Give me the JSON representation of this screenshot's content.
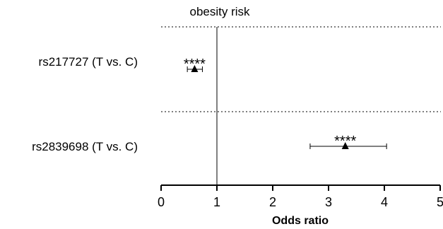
{
  "chart_data": {
    "type": "forest",
    "title": "obesity risk",
    "xlabel": "Odds ratio",
    "xlim": [
      0,
      5
    ],
    "x_ticks": [
      0,
      1,
      2,
      3,
      4,
      5
    ],
    "x_tick_labels": [
      "0",
      "1",
      "2",
      "3",
      "4",
      "5"
    ],
    "reference_line": 1,
    "rows": [
      {
        "label": "rs217727 (T vs. C)",
        "or": 0.6,
        "ci_low": 0.47,
        "ci_high": 0.74,
        "significance": "****"
      },
      {
        "label": "rs2839698 (T vs. C)",
        "or": 3.3,
        "ci_low": 2.67,
        "ci_high": 4.04,
        "significance": "****"
      }
    ]
  }
}
